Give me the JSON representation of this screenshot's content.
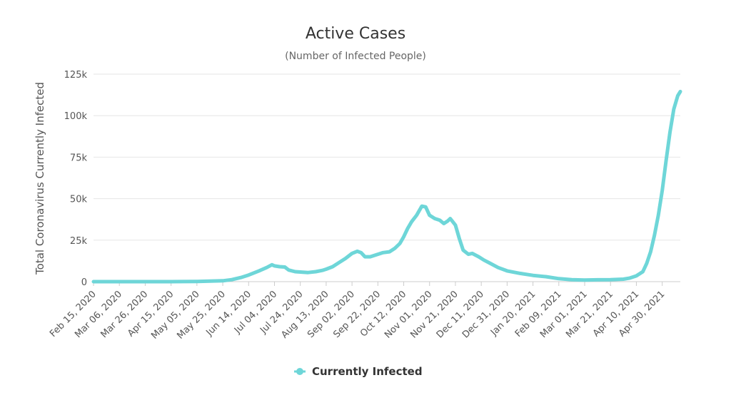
{
  "chart_data": {
    "type": "line",
    "title": "Active Cases",
    "subtitle": "(Number of Infected People)",
    "ylabel": "Total Coronavirus Currently Infected",
    "xlabel": "",
    "ylim": [
      0,
      125000
    ],
    "yticks": [
      0,
      25000,
      50000,
      75000,
      100000,
      125000
    ],
    "ytick_labels": [
      "0",
      "25k",
      "50k",
      "75k",
      "100k",
      "125k"
    ],
    "xlim": [
      "2020-02-15",
      "2021-05-14"
    ],
    "xtick_labels": [
      "Feb 15, 2020",
      "Mar 06, 2020",
      "Mar 26, 2020",
      "Apr 15, 2020",
      "May 05, 2020",
      "May 25, 2020",
      "Jun 14, 2020",
      "Jul 04, 2020",
      "Jul 24, 2020",
      "Aug 13, 2020",
      "Sep 02, 2020",
      "Sep 22, 2020",
      "Oct 12, 2020",
      "Nov 01, 2020",
      "Nov 21, 2020",
      "Dec 11, 2020",
      "Dec 31, 2020",
      "Jan 20, 2021",
      "Feb 09, 2021",
      "Mar 01, 2021",
      "Mar 21, 2021",
      "Apr 10, 2021",
      "Apr 30, 2021"
    ],
    "grid": true,
    "legend": "bottom-center",
    "series": [
      {
        "name": "Currently Infected",
        "color": "#6ed6d8",
        "points": [
          [
            "2020-02-15",
            0
          ],
          [
            "2020-03-06",
            0
          ],
          [
            "2020-03-26",
            0
          ],
          [
            "2020-04-15",
            0
          ],
          [
            "2020-05-05",
            100
          ],
          [
            "2020-05-25",
            500
          ],
          [
            "2020-06-01",
            1200
          ],
          [
            "2020-06-08",
            2500
          ],
          [
            "2020-06-14",
            4000
          ],
          [
            "2020-06-22",
            6500
          ],
          [
            "2020-06-28",
            8500
          ],
          [
            "2020-07-02",
            10200
          ],
          [
            "2020-07-04",
            9500
          ],
          [
            "2020-07-08",
            9000
          ],
          [
            "2020-07-12",
            8800
          ],
          [
            "2020-07-15",
            7000
          ],
          [
            "2020-07-20",
            6000
          ],
          [
            "2020-07-24",
            5800
          ],
          [
            "2020-07-30",
            5500
          ],
          [
            "2020-08-05",
            6000
          ],
          [
            "2020-08-10",
            6800
          ],
          [
            "2020-08-13",
            7500
          ],
          [
            "2020-08-18",
            9000
          ],
          [
            "2020-08-23",
            11500
          ],
          [
            "2020-08-28",
            14000
          ],
          [
            "2020-09-02",
            17000
          ],
          [
            "2020-09-06",
            18300
          ],
          [
            "2020-09-09",
            17500
          ],
          [
            "2020-09-12",
            15000
          ],
          [
            "2020-09-16",
            15000
          ],
          [
            "2020-09-22",
            16500
          ],
          [
            "2020-09-26",
            17500
          ],
          [
            "2020-10-01",
            18000
          ],
          [
            "2020-10-05",
            20000
          ],
          [
            "2020-10-09",
            23000
          ],
          [
            "2020-10-12",
            27000
          ],
          [
            "2020-10-15",
            32000
          ],
          [
            "2020-10-18",
            36000
          ],
          [
            "2020-10-22",
            40000
          ],
          [
            "2020-10-26",
            45500
          ],
          [
            "2020-10-29",
            45000
          ],
          [
            "2020-11-01",
            40000
          ],
          [
            "2020-11-05",
            38000
          ],
          [
            "2020-11-09",
            37000
          ],
          [
            "2020-11-12",
            35000
          ],
          [
            "2020-11-15",
            36500
          ],
          [
            "2020-11-17",
            38000
          ],
          [
            "2020-11-21",
            34000
          ],
          [
            "2020-11-24",
            26000
          ],
          [
            "2020-11-27",
            19000
          ],
          [
            "2020-12-01",
            16500
          ],
          [
            "2020-12-04",
            17000
          ],
          [
            "2020-12-09",
            15000
          ],
          [
            "2020-12-13",
            13000
          ],
          [
            "2020-12-18",
            11000
          ],
          [
            "2020-12-24",
            8500
          ],
          [
            "2020-12-31",
            6500
          ],
          [
            "2021-01-10",
            5000
          ],
          [
            "2021-01-20",
            3800
          ],
          [
            "2021-01-30",
            3000
          ],
          [
            "2021-02-09",
            1800
          ],
          [
            "2021-02-19",
            1200
          ],
          [
            "2021-03-01",
            1000
          ],
          [
            "2021-03-11",
            1100
          ],
          [
            "2021-03-21",
            1200
          ],
          [
            "2021-03-31",
            1500
          ],
          [
            "2021-04-05",
            2200
          ],
          [
            "2021-04-10",
            3500
          ],
          [
            "2021-04-15",
            6000
          ],
          [
            "2021-04-18",
            11000
          ],
          [
            "2021-04-21",
            18000
          ],
          [
            "2021-04-24",
            28000
          ],
          [
            "2021-04-27",
            40000
          ],
          [
            "2021-04-30",
            55000
          ],
          [
            "2021-05-03",
            73000
          ],
          [
            "2021-05-06",
            90000
          ],
          [
            "2021-05-09",
            104000
          ],
          [
            "2021-05-12",
            112000
          ],
          [
            "2021-05-14",
            114500
          ]
        ]
      }
    ]
  }
}
